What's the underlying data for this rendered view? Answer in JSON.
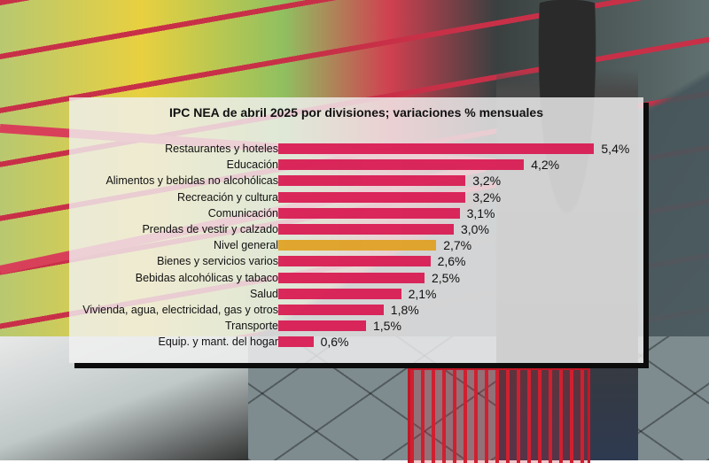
{
  "chart_data": {
    "type": "bar",
    "orientation": "horizontal",
    "title": "IPC NEA de abril 2025 por divisiones; variaciones % mensuales",
    "xlabel": "",
    "ylabel": "",
    "grid": false,
    "legend": null,
    "categories": [
      "Restaurantes y hoteles",
      "Educación",
      "Alimentos y bebidas no alcohólicas",
      "Recreación y cultura",
      "Comunicación",
      "Prendas de vestir y calzado",
      "Nivel general",
      "Bienes y servicios varios",
      "Bebidas alcohólicas y tabaco",
      "Salud",
      "Vivienda, agua, electricidad, gas y otros",
      "Transporte",
      "Equip. y mant. del hogar"
    ],
    "values": [
      5.4,
      4.2,
      3.2,
      3.2,
      3.1,
      3.0,
      2.7,
      2.6,
      2.5,
      2.1,
      1.8,
      1.5,
      0.6
    ],
    "value_labels": [
      "5,4%",
      "4,2%",
      "3,2%",
      "3,2%",
      "3,1%",
      "3,0%",
      "2,7%",
      "2,6%",
      "2,5%",
      "2,1%",
      "1,8%",
      "1,5%",
      "0,6%"
    ],
    "highlight_category": "Nivel general",
    "colors": {
      "bar": "#d8174f",
      "highlight": "#e0a020"
    }
  },
  "chart": {
    "title": "IPC NEA de abril 2025 por divisiones; variaciones % mensuales"
  }
}
